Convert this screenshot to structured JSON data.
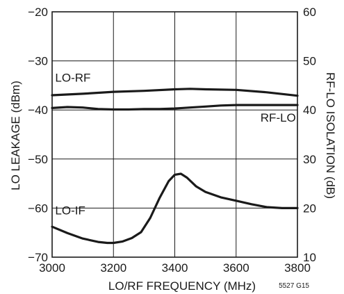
{
  "chart_data": {
    "type": "line",
    "title": "",
    "xlabel": "LO/RF FREQUENCY (MHz)",
    "ylabel_left": "LO LEAKAGE (dBm)",
    "ylabel_right": "RF-LO ISOLATION (dB)",
    "xlim": [
      3000,
      3800
    ],
    "ylim_left": [
      -70,
      -20
    ],
    "ylim_right": [
      10,
      60
    ],
    "x_ticks": [
      "3000",
      "3200",
      "3400",
      "3600",
      "3800"
    ],
    "x_tick_values": [
      3000,
      3200,
      3400,
      3600,
      3800
    ],
    "y_ticks_left": [
      "−70",
      "−60",
      "−50",
      "−40",
      "−30",
      "−20"
    ],
    "y_tick_values_left": [
      -70,
      -60,
      -50,
      -40,
      -30,
      -20
    ],
    "y_ticks_right": [
      "10",
      "20",
      "30",
      "40",
      "50",
      "60"
    ],
    "y_tick_values_right": [
      10,
      20,
      30,
      40,
      50,
      60
    ],
    "grid": true,
    "figure_code": "5527 G15",
    "series": [
      {
        "name": "LO-RF",
        "axis": "left",
        "x": [
          3000,
          3100,
          3200,
          3300,
          3400,
          3450,
          3500,
          3600,
          3700,
          3800
        ],
        "y": [
          -37.0,
          -36.7,
          -36.3,
          -36.1,
          -35.8,
          -35.7,
          -35.8,
          -35.9,
          -36.4,
          -37.1
        ]
      },
      {
        "name": "RF-LO",
        "axis": "right",
        "x": [
          3000,
          3050,
          3100,
          3150,
          3200,
          3250,
          3300,
          3350,
          3400,
          3450,
          3500,
          3550,
          3600,
          3700,
          3800
        ],
        "y": [
          40.4,
          40.6,
          40.5,
          40.2,
          40.1,
          40.1,
          40.2,
          40.2,
          40.3,
          40.5,
          40.7,
          40.9,
          41.0,
          41.0,
          41.0
        ]
      },
      {
        "name": "LO-IF",
        "axis": "left",
        "x": [
          3000,
          3050,
          3100,
          3150,
          3180,
          3200,
          3230,
          3260,
          3290,
          3320,
          3350,
          3380,
          3400,
          3420,
          3440,
          3470,
          3500,
          3550,
          3600,
          3650,
          3700,
          3750,
          3800
        ],
        "y": [
          -63.8,
          -65.1,
          -66.2,
          -66.9,
          -67.1,
          -67.1,
          -66.8,
          -66.1,
          -64.9,
          -62.0,
          -58.0,
          -54.5,
          -53.2,
          -53.0,
          -53.8,
          -55.6,
          -56.7,
          -57.8,
          -58.5,
          -59.2,
          -59.8,
          -60.0,
          -60.0
        ]
      }
    ],
    "annotations": [
      {
        "text": "LO-RF",
        "x": 3010,
        "y": -34.2
      },
      {
        "text": "RF-LO",
        "x": 3795,
        "y": -42.4
      },
      {
        "text": "LO-IF",
        "x": 3010,
        "y": -61.3
      }
    ]
  }
}
